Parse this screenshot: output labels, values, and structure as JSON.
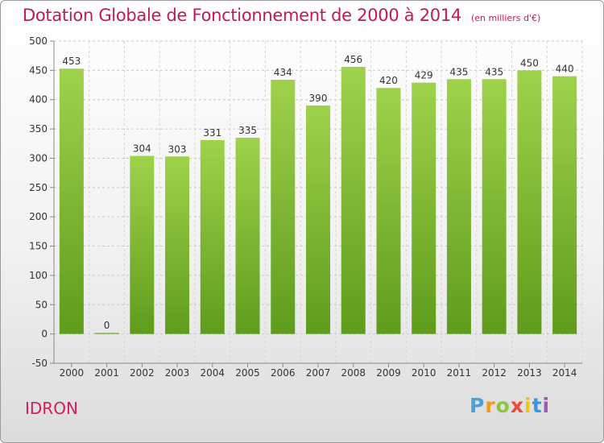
{
  "title": "Dotation Globale de Fonctionnement de 2000 à 2014",
  "subtitle": "(en milliers d'€)",
  "town": "IDRON",
  "logo": {
    "letters": [
      "P",
      "r",
      "o",
      "x",
      "i",
      "t",
      "i"
    ]
  },
  "chart_data": {
    "type": "bar",
    "categories": [
      "2000",
      "2001",
      "2002",
      "2003",
      "2004",
      "2005",
      "2006",
      "2007",
      "2008",
      "2009",
      "2010",
      "2011",
      "2012",
      "2013",
      "2014"
    ],
    "values": [
      453,
      0,
      304,
      303,
      331,
      335,
      434,
      390,
      456,
      420,
      429,
      435,
      435,
      450,
      440
    ],
    "title": "Dotation Globale de Fonctionnement de 2000 à 2014",
    "subtitle": "(en milliers d'€)",
    "xlabel": "",
    "ylabel": "",
    "ylim": [
      -50,
      500
    ],
    "yticks": [
      -50,
      0,
      50,
      100,
      150,
      200,
      250,
      300,
      350,
      400,
      450,
      500
    ],
    "grid": "horizontal dashed",
    "bar_color": "#7ab830",
    "legend": "none"
  }
}
